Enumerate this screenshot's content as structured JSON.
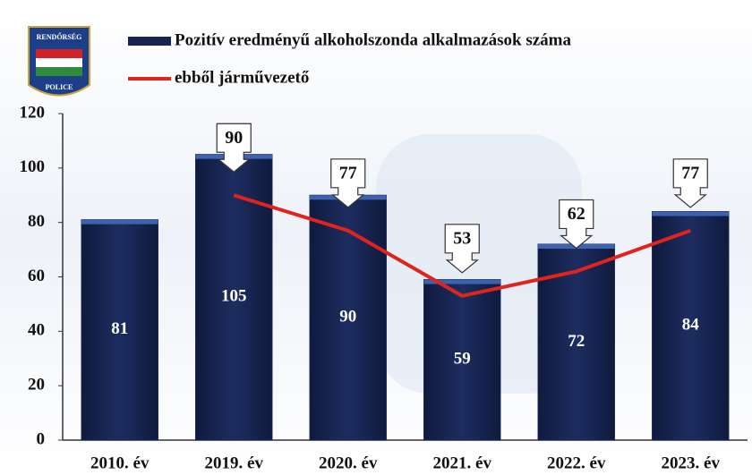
{
  "logo": {
    "top": "RENDŐRSÉG",
    "bottom": "POLICE"
  },
  "chart_data": {
    "type": "bar",
    "categories": [
      "2010. év",
      "2019. év",
      "2020. év",
      "2021. év",
      "2022. év",
      "2023. év"
    ],
    "series": [
      {
        "name": "Pozitív eredményű alkoholszonda alkalmazások száma",
        "type": "bar",
        "color": "#16244f",
        "values": [
          81,
          105,
          90,
          59,
          72,
          84
        ]
      },
      {
        "name": "ebből járművezető",
        "type": "line",
        "color": "#e0231c",
        "values": [
          null,
          90,
          77,
          53,
          62,
          77
        ]
      }
    ],
    "ylim": [
      0,
      120
    ],
    "yticks": [
      0,
      20,
      40,
      60,
      80,
      100,
      120
    ]
  }
}
